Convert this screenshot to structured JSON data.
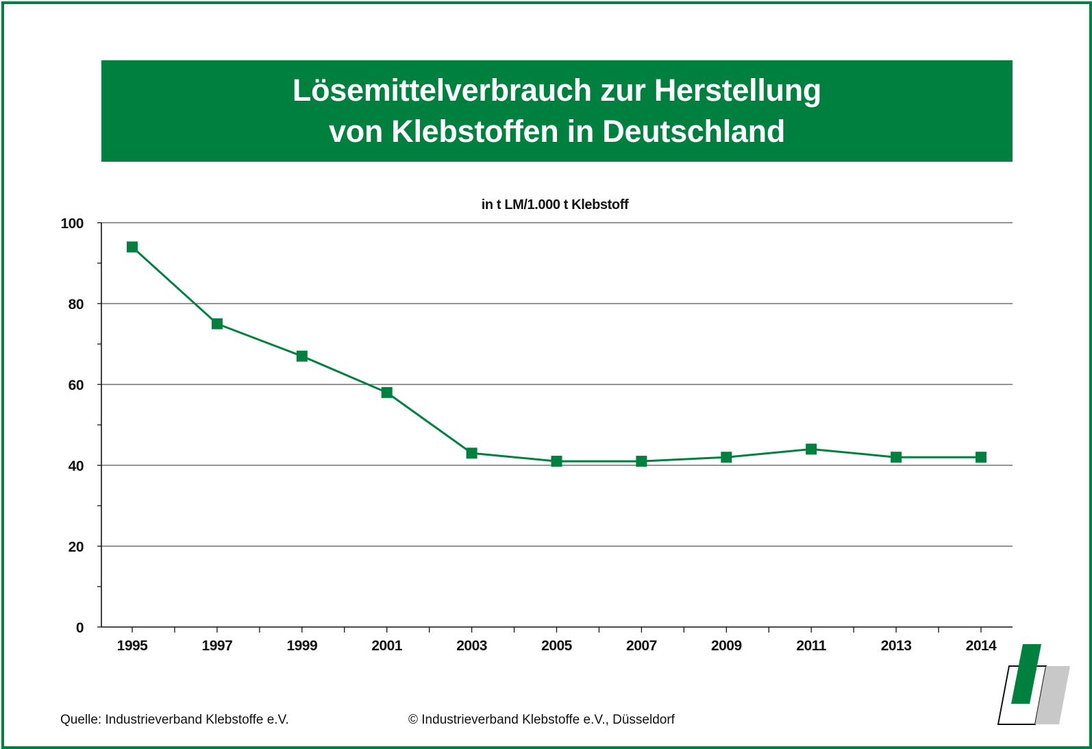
{
  "title_lines": [
    "Lösemittelverbrauch zur Herstellung",
    "von Klebstoffen in Deutschland"
  ],
  "footer": {
    "source": "Quelle: Industrieverband Klebstoffe e.V.",
    "copyright": "© Industrieverband Klebstoffe e.V., Düsseldorf"
  },
  "logo": {
    "icon": "industrieverband-klebstoffe-logo"
  },
  "colors": {
    "brand_green": "#00803f",
    "grid": "#555555",
    "logo_gray": "#c8c8c8"
  },
  "chart_data": {
    "type": "line",
    "title": "",
    "unit_label": "in t LM/1.000 t Klebstoff",
    "xlabel": "",
    "ylabel": "",
    "categories": [
      "1995",
      "1997",
      "1999",
      "2001",
      "2003",
      "2005",
      "2007",
      "2009",
      "2011",
      "2013",
      "2014"
    ],
    "series": [
      {
        "values": [
          94,
          75,
          67,
          58,
          43,
          41,
          41,
          42,
          44,
          42,
          42
        ]
      }
    ],
    "ylim": [
      0,
      100
    ],
    "yticks": [
      "0",
      "20",
      "40",
      "60",
      "80",
      "100"
    ],
    "y_minor_step": 10,
    "grid": true,
    "marker": "square",
    "legend": "none"
  }
}
